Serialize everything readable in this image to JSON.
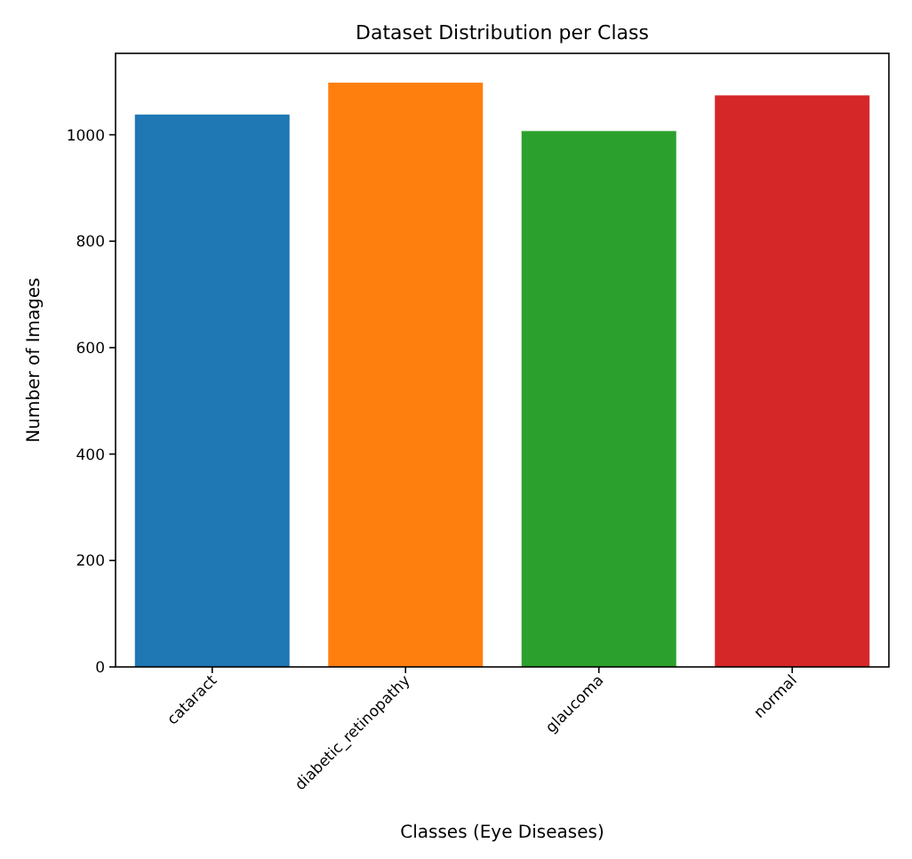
{
  "chart_data": {
    "type": "bar",
    "title": "Dataset Distribution per Class",
    "xlabel": "Classes (Eye Diseases)",
    "ylabel": "Number of Images",
    "categories": [
      "cataract",
      "diabetic_retinopathy",
      "glaucoma",
      "normal"
    ],
    "values": [
      1038,
      1098,
      1007,
      1074
    ],
    "colors": [
      "#1f77b4",
      "#ff7f0e",
      "#2ca02c",
      "#d62728"
    ],
    "ylim": [
      0,
      1153
    ],
    "yticks": [
      0,
      200,
      400,
      600,
      800,
      1000
    ],
    "grid": false
  }
}
